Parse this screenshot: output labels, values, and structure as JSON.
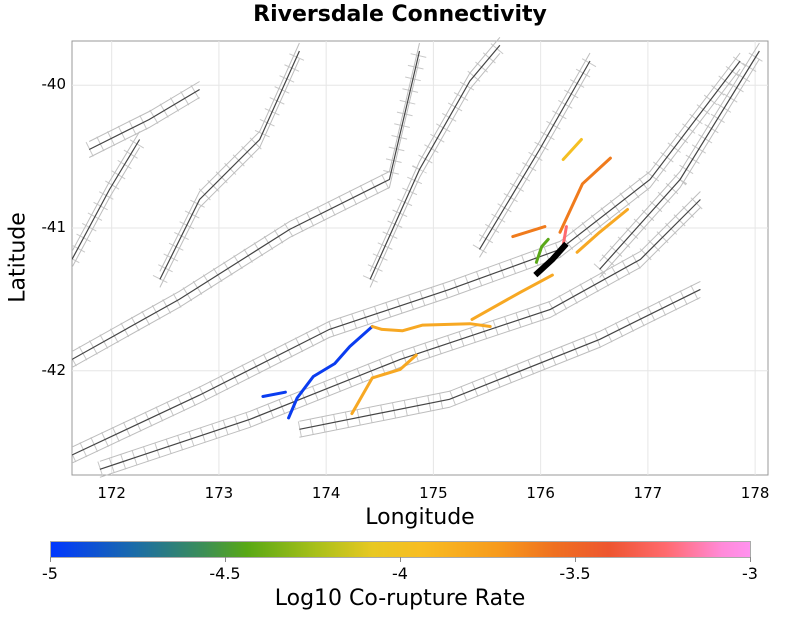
{
  "title": "Riversdale Connectivity",
  "xlabel": "Longitude",
  "ylabel": "Latitude",
  "colorbar": {
    "label": "Log10 Co-rupture Rate",
    "ticks": [
      "-5",
      "-4.5",
      "-4",
      "-3.5",
      "-3"
    ],
    "range": [
      -5,
      -3
    ]
  },
  "chart_data": {
    "type": "map",
    "title": "Riversdale Connectivity",
    "xlabel": "Longitude",
    "ylabel": "Latitude",
    "xlim": [
      171.63,
      178.12
    ],
    "ylim": [
      -42.73,
      -39.69
    ],
    "xticks": [
      "172",
      "173",
      "174",
      "175",
      "176",
      "177",
      "178"
    ],
    "yticks": [
      "-40",
      "-41",
      "-42"
    ],
    "grid": true,
    "source_fault": {
      "color": "#000000",
      "coords": [
        [
          175.95,
          -41.33
        ],
        [
          176.11,
          -41.22
        ],
        [
          176.24,
          -41.11
        ]
      ]
    },
    "ruptures": [
      {
        "value": -5.0,
        "color": "#0a3cf0",
        "coords": [
          [
            173.41,
            -42.18
          ],
          [
            173.62,
            -42.15
          ]
        ]
      },
      {
        "value": -5.0,
        "color": "#0a3cf0",
        "coords": [
          [
            173.65,
            -42.33
          ],
          [
            173.73,
            -42.19
          ],
          [
            173.88,
            -42.04
          ],
          [
            174.08,
            -41.95
          ],
          [
            174.22,
            -41.83
          ],
          [
            174.43,
            -41.69
          ]
        ]
      },
      {
        "value": -3.85,
        "color": "#f7a823",
        "coords": [
          [
            174.43,
            -41.69
          ],
          [
            174.52,
            -41.71
          ],
          [
            174.71,
            -41.72
          ],
          [
            174.9,
            -41.68
          ],
          [
            175.34,
            -41.67
          ],
          [
            175.53,
            -41.69
          ]
        ]
      },
      {
        "value": -3.85,
        "color": "#f7a823",
        "coords": [
          [
            175.36,
            -41.64
          ],
          [
            175.81,
            -41.45
          ],
          [
            176.11,
            -41.33
          ]
        ]
      },
      {
        "value": -3.85,
        "color": "#f7a823",
        "coords": [
          [
            174.24,
            -42.3
          ],
          [
            174.43,
            -42.05
          ],
          [
            174.69,
            -41.99
          ],
          [
            174.84,
            -41.89
          ]
        ]
      },
      {
        "value": -3.85,
        "color": "#f7a823",
        "coords": [
          [
            176.34,
            -41.17
          ],
          [
            176.55,
            -41.03
          ],
          [
            176.81,
            -40.87
          ]
        ]
      },
      {
        "value": -3.65,
        "color": "#f07b1c",
        "coords": [
          [
            176.18,
            -41.03
          ],
          [
            176.39,
            -40.69
          ],
          [
            176.65,
            -40.51
          ]
        ]
      },
      {
        "value": -3.65,
        "color": "#f07b1c",
        "coords": [
          [
            175.74,
            -41.06
          ],
          [
            176.04,
            -40.99
          ]
        ]
      },
      {
        "value": -3.95,
        "color": "#f5bf22",
        "coords": [
          [
            176.21,
            -40.52
          ],
          [
            176.38,
            -40.38
          ]
        ]
      },
      {
        "value": -4.5,
        "color": "#5aa818",
        "coords": [
          [
            175.96,
            -41.24
          ],
          [
            176.01,
            -41.13
          ],
          [
            176.07,
            -41.08
          ]
        ]
      },
      {
        "value": -3.25,
        "color": "#ff6a6f",
        "coords": [
          [
            176.21,
            -41.12
          ],
          [
            176.24,
            -40.99
          ]
        ]
      }
    ],
    "background_faults": [
      [
        [
          171.63,
          -42.59
        ],
        [
          172.82,
          -42.17
        ],
        [
          174.03,
          -41.71
        ],
        [
          175.15,
          -41.43
        ],
        [
          176.18,
          -41.15
        ],
        [
          177.02,
          -40.66
        ],
        [
          177.86,
          -39.83
        ]
      ],
      [
        [
          171.63,
          -41.92
        ],
        [
          172.63,
          -41.5
        ],
        [
          173.66,
          -41.01
        ],
        [
          174.59,
          -40.66
        ],
        [
          174.87,
          -39.76
        ]
      ],
      [
        [
          171.89,
          -42.69
        ],
        [
          173.29,
          -42.34
        ],
        [
          174.69,
          -41.92
        ],
        [
          176.09,
          -41.57
        ],
        [
          176.93,
          -41.22
        ],
        [
          177.49,
          -40.8
        ]
      ],
      [
        [
          171.79,
          -40.45
        ],
        [
          172.35,
          -40.24
        ],
        [
          172.82,
          -40.03
        ]
      ],
      [
        [
          172.45,
          -41.36
        ],
        [
          172.82,
          -40.8
        ],
        [
          173.38,
          -40.38
        ],
        [
          173.75,
          -39.76
        ]
      ],
      [
        [
          174.41,
          -41.36
        ],
        [
          174.87,
          -40.59
        ],
        [
          175.34,
          -39.97
        ],
        [
          175.62,
          -39.72
        ]
      ],
      [
        [
          175.43,
          -41.15
        ],
        [
          175.99,
          -40.45
        ],
        [
          176.46,
          -39.83
        ]
      ],
      [
        [
          173.75,
          -42.41
        ],
        [
          175.15,
          -42.2
        ],
        [
          176.55,
          -41.78
        ],
        [
          177.49,
          -41.43
        ]
      ],
      [
        [
          171.63,
          -41.22
        ],
        [
          171.98,
          -40.73
        ],
        [
          172.26,
          -40.38
        ]
      ],
      [
        [
          176.55,
          -41.29
        ],
        [
          177.3,
          -40.66
        ],
        [
          178.04,
          -39.76
        ]
      ]
    ]
  }
}
